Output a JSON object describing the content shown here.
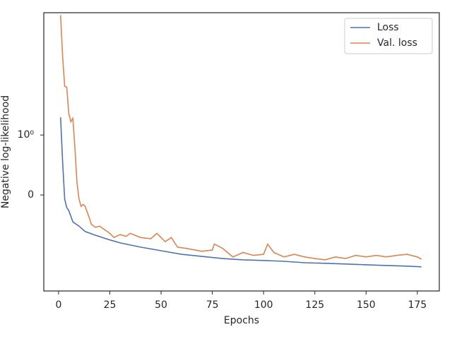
{
  "chart_data": {
    "type": "line",
    "xlabel": "Epochs",
    "ylabel": "Negative log-likelihood",
    "xlim": [
      -7.2,
      185.7
    ],
    "xticks": [
      0,
      25,
      50,
      75,
      100,
      125,
      150,
      175
    ],
    "ylim": [
      -4,
      110
    ],
    "yscale": "symlog",
    "linthresh": 1,
    "yticks": [
      {
        "value": 1,
        "label": "10⁰"
      },
      0
    ],
    "legend": "upper right",
    "series": [
      {
        "name": "Loss",
        "color": "#4c72b0",
        "x": [
          1,
          2,
          3,
          4,
          5,
          7,
          10,
          13,
          17,
          25,
          30,
          40,
          50,
          60,
          70,
          80,
          90,
          100,
          110,
          120,
          130,
          140,
          150,
          160,
          170,
          177
        ],
        "values": [
          1.97,
          0.54,
          -0.07,
          -0.21,
          -0.26,
          -0.45,
          -0.52,
          -0.61,
          -0.66,
          -0.75,
          -0.8,
          -0.87,
          -0.93,
          -0.99,
          -1.06,
          -1.15,
          -1.21,
          -1.24,
          -1.28,
          -1.35,
          -1.38,
          -1.42,
          -1.46,
          -1.5,
          -1.54,
          -1.58
        ]
      },
      {
        "name": "Val. loss",
        "color": "#dd8452",
        "x": [
          1,
          2,
          3,
          4,
          5,
          6,
          7,
          8,
          9,
          10,
          11,
          12,
          13,
          15,
          16,
          18,
          20,
          25,
          27,
          30,
          33,
          35,
          40,
          45,
          48,
          52,
          55,
          58,
          62,
          70,
          75,
          76,
          80,
          85,
          90,
          95,
          100,
          102,
          105,
          110,
          115,
          120,
          125,
          130,
          135,
          140,
          145,
          150,
          155,
          160,
          165,
          170,
          175,
          177
        ],
        "values": [
          100,
          20.2,
          6.5,
          6.3,
          2.3,
          1.67,
          1.9,
          0.78,
          0.21,
          -0.07,
          -0.19,
          -0.16,
          -0.19,
          -0.38,
          -0.49,
          -0.54,
          -0.52,
          -0.64,
          -0.71,
          -0.66,
          -0.69,
          -0.64,
          -0.71,
          -0.73,
          -0.64,
          -0.78,
          -0.71,
          -0.87,
          -0.89,
          -0.94,
          -0.92,
          -0.82,
          -0.89,
          -1.08,
          -0.96,
          -1.02,
          -0.99,
          -0.82,
          -0.96,
          -1.08,
          -0.99,
          -1.08,
          -1.15,
          -1.21,
          -1.08,
          -1.15,
          -1.02,
          -1.08,
          -1.02,
          -1.08,
          -1.02,
          -0.99,
          -1.08,
          -1.18
        ]
      }
    ]
  }
}
